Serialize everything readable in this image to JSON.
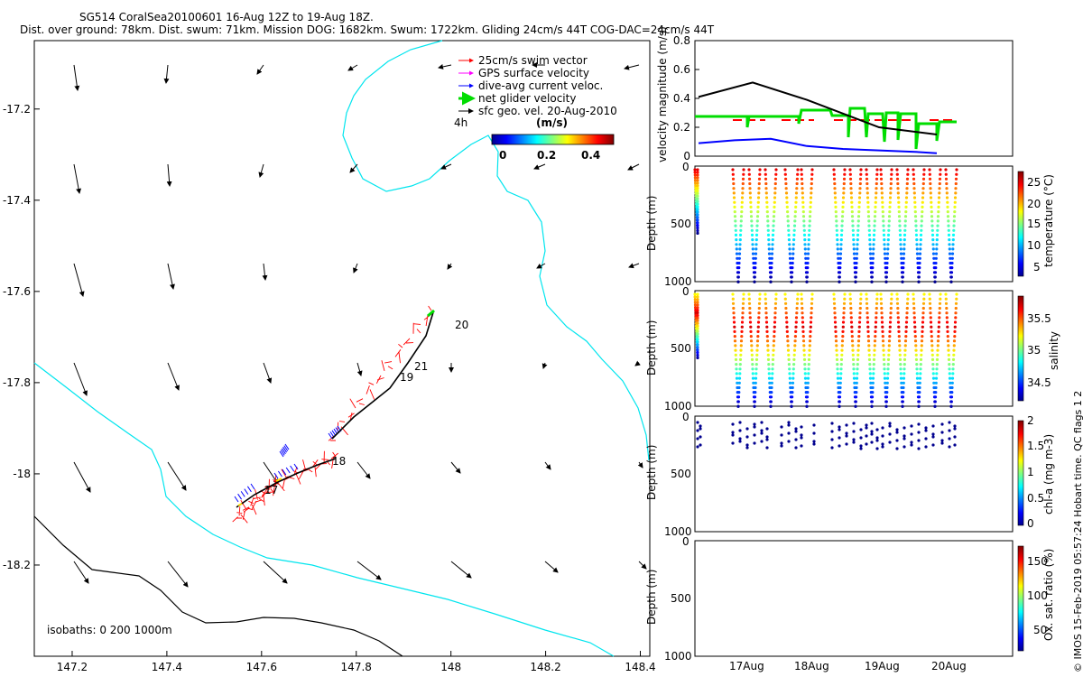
{
  "header": {
    "line1": "SG514 CoralSea20100601 16-Aug 12Z to 19-Aug 18Z.",
    "line2": "Dist. over ground: 78km. Dist. swum: 71km. Mission DOG: 1682km. Swum: 1722km. Gliding 24cm/s 44T COG-DAC=24cm/s 44T"
  },
  "map": {
    "x_ticks": [
      "147.2",
      "147.4",
      "147.6",
      "147.8",
      "148",
      "148.2",
      "148.4"
    ],
    "y_ticks": [
      "-17.2",
      "-17.4",
      "-17.6",
      "-17.8",
      "-18",
      "-18.2"
    ],
    "xlim": [
      147.12,
      148.42
    ],
    "ylim": [
      -18.4,
      -17.05
    ],
    "legend": [
      {
        "label": "25cm/s swim vector",
        "color": "#ff0000"
      },
      {
        "label": "GPS surface velocity",
        "color": "#ff00ff"
      },
      {
        "label": "dive-avg current veloc.",
        "color": "#0000ff"
      },
      {
        "label": "net glider velocity",
        "color": "#00dd00"
      },
      {
        "label": "sfc geo. vel. 20-Aug-2010",
        "color": "#000000"
      }
    ],
    "legend_note": "4h",
    "colorbar_label": "(m/s)",
    "colorbar_ticks": [
      "0",
      "0.2",
      "0.4"
    ],
    "day_labels": [
      {
        "text": "17",
        "lon": 147.63,
        "lat": -18.06
      },
      {
        "text": "18",
        "lon": 147.76,
        "lat": -18.0
      },
      {
        "text": "19",
        "lon": 147.89,
        "lat": -17.83
      },
      {
        "text": "21",
        "lon": 147.91,
        "lat": -17.815
      },
      {
        "text": "20",
        "lon": 147.98,
        "lat": -17.735
      }
    ],
    "isobath_note": "isobaths: 0   200  1000m",
    "colors": {
      "coast": "#00e5ee",
      "isobath": "#000000",
      "track": "#ff0000",
      "dac": "#0000ff"
    }
  },
  "panels": {
    "time_ticks": [
      "17Aug",
      "18Aug",
      "19Aug",
      "20Aug"
    ],
    "velocity": {
      "ylabel": "velocity magnitude (m/s)",
      "y_ticks": [
        "0",
        "0.2",
        "0.4",
        "0.6",
        "0.8"
      ]
    },
    "temperature": {
      "ylabel": "Depth (m)",
      "depth_ticks": [
        "0",
        "500",
        "1000"
      ],
      "cbar_label": "temperature (°C)",
      "cbar_ticks": [
        "25",
        "20",
        "15",
        "10",
        "5"
      ]
    },
    "salinity": {
      "ylabel": "Depth (m)",
      "depth_ticks": [
        "0",
        "500",
        "1000"
      ],
      "cbar_label": "salinity",
      "cbar_ticks": [
        "35.5",
        "35",
        "34.5"
      ]
    },
    "chla": {
      "ylabel": "Depth (m)",
      "depth_ticks": [
        "0",
        "500",
        "1000"
      ],
      "cbar_label": "chl-a (mg m-3)",
      "cbar_ticks": [
        "2",
        "1.5",
        "1",
        "0.5",
        "0"
      ]
    },
    "oxygen": {
      "ylabel": "Depth (m)",
      "depth_ticks": [
        "0",
        "500",
        "1000"
      ],
      "cbar_label": "Ox. sat. ratio (%)",
      "cbar_ticks": [
        "150",
        "100",
        "50"
      ]
    }
  },
  "footer_note": "© IMOS 15-Feb-2019 05:57:24 Hobart time. QC flags 1  2",
  "chart_data": [
    {
      "type": "scatter",
      "title": "SG514 CoralSea20100601 16-Aug 12Z to 19-Aug 18Z.",
      "xlim": [
        147.12,
        148.42
      ],
      "ylim": [
        -18.4,
        -17.05
      ],
      "series": [
        {
          "name": "net glider velocity",
          "x": [
            147.56,
            147.63,
            147.75,
            147.83,
            147.9,
            147.97
          ],
          "y": [
            -18.09,
            -18.05,
            -18.0,
            -17.9,
            -17.82,
            -17.7
          ]
        }
      ]
    },
    {
      "type": "line",
      "ylabel": "velocity magnitude (m/s)",
      "ylim": [
        0,
        0.8
      ],
      "series": [
        {
          "name": "black",
          "x": [
            16.5,
            17.25,
            18.0,
            19.0,
            19.8
          ],
          "y": [
            0.41,
            0.51,
            0.39,
            0.2,
            0.15
          ]
        },
        {
          "name": "blue",
          "x": [
            16.5,
            17.0,
            17.5,
            18.0,
            18.5,
            19.0,
            19.5,
            19.8
          ],
          "y": [
            0.09,
            0.11,
            0.12,
            0.07,
            0.05,
            0.04,
            0.03,
            0.02
          ]
        }
      ]
    }
  ]
}
